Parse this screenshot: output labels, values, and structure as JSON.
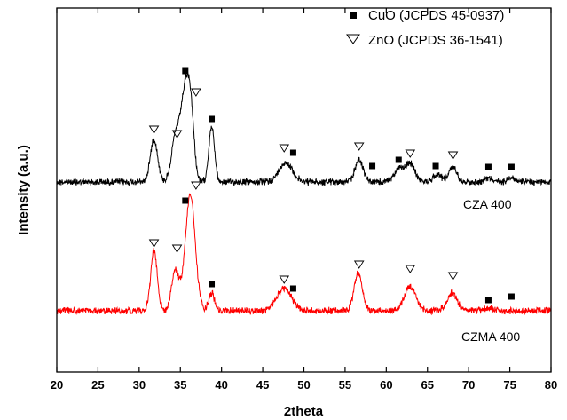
{
  "chart_data": {
    "type": "line",
    "xlabel": "2theta",
    "ylabel": "Intensity (a.u.)",
    "xlim": [
      20,
      80
    ],
    "xticks": [
      20,
      25,
      30,
      35,
      40,
      45,
      50,
      55,
      60,
      65,
      70,
      75,
      80
    ],
    "grid": false,
    "legend_position": "top-right",
    "legend": [
      {
        "label": "CuO (JCPDS 45-0937)",
        "marker": "filled-square"
      },
      {
        "label": "ZnO (JCPDS 36-1541)",
        "marker": "open-triangle-down"
      }
    ],
    "series": [
      {
        "name": "CZA 400",
        "color": "#000000",
        "baseline": 205,
        "noise": 3,
        "peaks": [
          {
            "x": 31.8,
            "h": 48,
            "w": 0.45
          },
          {
            "x": 34.4,
            "h": 48,
            "w": 0.5
          },
          {
            "x": 35.6,
            "h": 100,
            "w": 0.55
          },
          {
            "x": 36.3,
            "h": 55,
            "w": 0.4
          },
          {
            "x": 38.8,
            "h": 62,
            "w": 0.35
          },
          {
            "x": 47.8,
            "h": 22,
            "w": 0.8
          },
          {
            "x": 56.7,
            "h": 25,
            "w": 0.5
          },
          {
            "x": 61.5,
            "h": 14,
            "w": 0.6
          },
          {
            "x": 62.9,
            "h": 20,
            "w": 0.6
          },
          {
            "x": 66.2,
            "h": 9,
            "w": 0.5
          },
          {
            "x": 68.1,
            "h": 17,
            "w": 0.5
          },
          {
            "x": 72.4,
            "h": 5,
            "w": 0.5
          },
          {
            "x": 75.2,
            "h": 5,
            "w": 0.5
          }
        ],
        "cuo_markers": [
          35.6,
          38.8,
          48.7,
          58.3,
          61.5,
          66.0,
          72.4,
          75.2
        ],
        "zno_markers": [
          31.8,
          34.6,
          36.9,
          47.6,
          56.7,
          62.9,
          68.1
        ]
      },
      {
        "name": "CZMA 400",
        "color": "#ff0000",
        "baseline": 350,
        "noise": 3,
        "peaks": [
          {
            "x": 31.8,
            "h": 68,
            "w": 0.4
          },
          {
            "x": 34.4,
            "h": 45,
            "w": 0.45
          },
          {
            "x": 36.2,
            "h": 130,
            "w": 0.6
          },
          {
            "x": 38.8,
            "h": 20,
            "w": 0.35
          },
          {
            "x": 47.6,
            "h": 25,
            "w": 0.9
          },
          {
            "x": 56.6,
            "h": 42,
            "w": 0.5
          },
          {
            "x": 62.9,
            "h": 27,
            "w": 0.7
          },
          {
            "x": 68.0,
            "h": 20,
            "w": 0.6
          },
          {
            "x": 72.4,
            "h": 3,
            "w": 0.5
          }
        ],
        "cuo_markers": [
          35.6,
          38.8,
          48.7,
          72.4,
          75.2
        ],
        "zno_markers": [
          31.8,
          34.6,
          36.9,
          47.6,
          56.7,
          62.9,
          68.1
        ]
      }
    ],
    "marker_heights": {
      "CZA 400": {
        "cuo": [
          80,
          134,
          172,
          187,
          180,
          187,
          188,
          188
        ],
        "zno": [
          146,
          151,
          104,
          167,
          165,
          173,
          175
        ]
      },
      "CZMA 400": {
        "cuo": [
          226,
          320,
          325,
          338,
          334
        ],
        "zno": [
          274,
          280,
          209,
          315,
          298,
          303,
          311
        ]
      }
    }
  }
}
